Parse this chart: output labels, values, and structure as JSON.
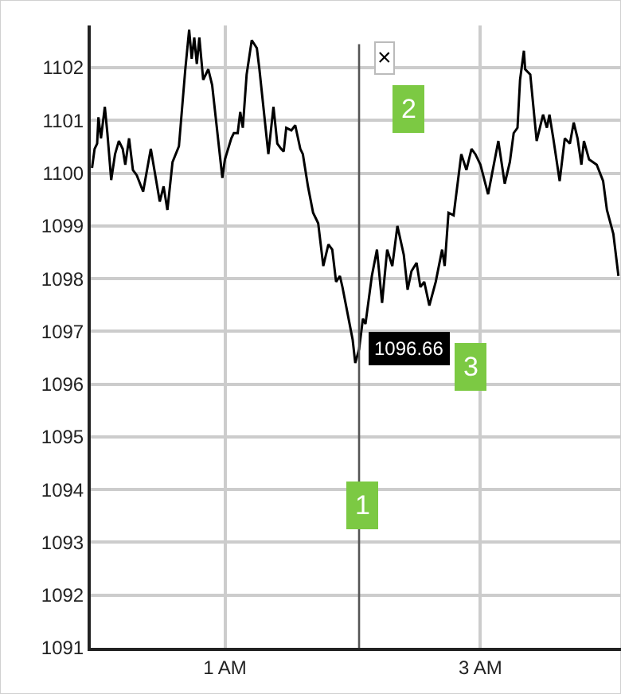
{
  "chart_data": {
    "type": "line",
    "x": [
      -0.04,
      -0.02,
      0.0,
      0.01,
      0.03,
      0.06,
      0.08,
      0.11,
      0.14,
      0.17,
      0.2,
      0.22,
      0.25,
      0.28,
      0.31,
      0.36,
      0.42,
      0.49,
      0.52,
      0.55,
      0.59,
      0.64,
      0.69,
      0.72,
      0.74,
      0.76,
      0.78,
      0.8,
      0.83,
      0.87,
      0.9,
      0.98,
      1.0,
      1.05,
      1.07,
      1.1,
      1.12,
      1.14,
      1.17,
      1.21,
      1.25,
      1.27,
      1.34,
      1.38,
      1.41,
      1.44,
      1.46,
      1.48,
      1.52,
      1.55,
      1.59,
      1.61,
      1.65,
      1.69,
      1.73,
      1.77,
      1.81,
      1.84,
      1.87,
      1.9,
      1.92,
      1.96,
      2.0,
      2.02,
      2.05,
      2.08,
      2.1,
      2.15,
      2.19,
      2.23,
      2.27,
      2.31,
      2.35,
      2.4,
      2.43,
      2.46,
      2.5,
      2.53,
      2.56,
      2.6,
      2.65,
      2.7,
      2.72,
      2.75,
      2.79,
      2.85,
      2.89,
      2.93,
      2.96,
      3.0,
      3.06,
      3.14,
      3.19,
      3.23,
      3.26,
      3.29,
      3.31,
      3.34,
      3.35,
      3.39,
      3.44,
      3.49,
      3.52,
      3.54,
      3.57,
      3.62,
      3.66,
      3.7,
      3.73,
      3.76,
      3.79,
      3.81,
      3.85,
      3.91,
      3.96,
      3.99,
      4.04,
      4.08
    ],
    "series": [
      {
        "color": "#000000",
        "values": [
          1100.1,
          1100.46,
          1100.56,
          1101.06,
          1100.66,
          1101.26,
          1100.76,
          1099.87,
          1100.36,
          1100.61,
          1100.46,
          1100.16,
          1100.66,
          1100.06,
          1099.96,
          1099.65,
          1100.46,
          1099.46,
          1099.75,
          1099.3,
          1100.21,
          1100.51,
          1101.97,
          1102.72,
          1102.17,
          1102.57,
          1102.07,
          1102.57,
          1101.77,
          1101.97,
          1101.67,
          1099.91,
          1100.26,
          1100.66,
          1100.76,
          1100.76,
          1101.16,
          1100.86,
          1101.87,
          1102.52,
          1102.37,
          1101.97,
          1100.36,
          1101.26,
          1100.56,
          1100.46,
          1100.41,
          1100.86,
          1100.81,
          1100.91,
          1100.46,
          1100.36,
          1099.75,
          1099.25,
          1099.05,
          1098.24,
          1098.65,
          1098.55,
          1097.94,
          1098.05,
          1097.84,
          1097.34,
          1096.84,
          1096.4,
          1096.66,
          1097.24,
          1097.14,
          1098.05,
          1098.55,
          1097.54,
          1098.55,
          1098.24,
          1099.0,
          1098.45,
          1097.79,
          1098.14,
          1098.3,
          1097.84,
          1097.94,
          1097.49,
          1097.94,
          1098.55,
          1098.24,
          1099.25,
          1099.2,
          1100.36,
          1100.06,
          1100.46,
          1100.36,
          1100.16,
          1099.6,
          1100.61,
          1099.8,
          1100.21,
          1100.76,
          1100.86,
          1101.77,
          1102.32,
          1101.97,
          1101.87,
          1100.61,
          1101.11,
          1100.86,
          1101.11,
          1100.66,
          1099.85,
          1100.66,
          1100.56,
          1100.96,
          1100.66,
          1100.16,
          1100.61,
          1100.26,
          1100.16,
          1099.85,
          1099.3,
          1098.85,
          1098.05
        ]
      }
    ],
    "xlim": [
      -0.05,
      4.1
    ],
    "xticks": [
      {
        "value": 1,
        "label": "1 AM"
      },
      {
        "value": 3,
        "label": "3 AM"
      }
    ],
    "ylim": [
      1091,
      1102.8
    ],
    "yticks": [
      1091,
      1092,
      1093,
      1094,
      1095,
      1096,
      1097,
      1098,
      1099,
      1100,
      1101,
      1102
    ],
    "grid": true,
    "marker": "none",
    "line_style": "solid",
    "ref_lines": [
      {
        "axis": "x",
        "value": 2.05,
        "color": "#555555"
      }
    ],
    "annotations": [
      {
        "text": "1096.66",
        "x": 2.05,
        "y": 1096.66
      },
      "1",
      "2",
      "3",
      "×"
    ]
  }
}
